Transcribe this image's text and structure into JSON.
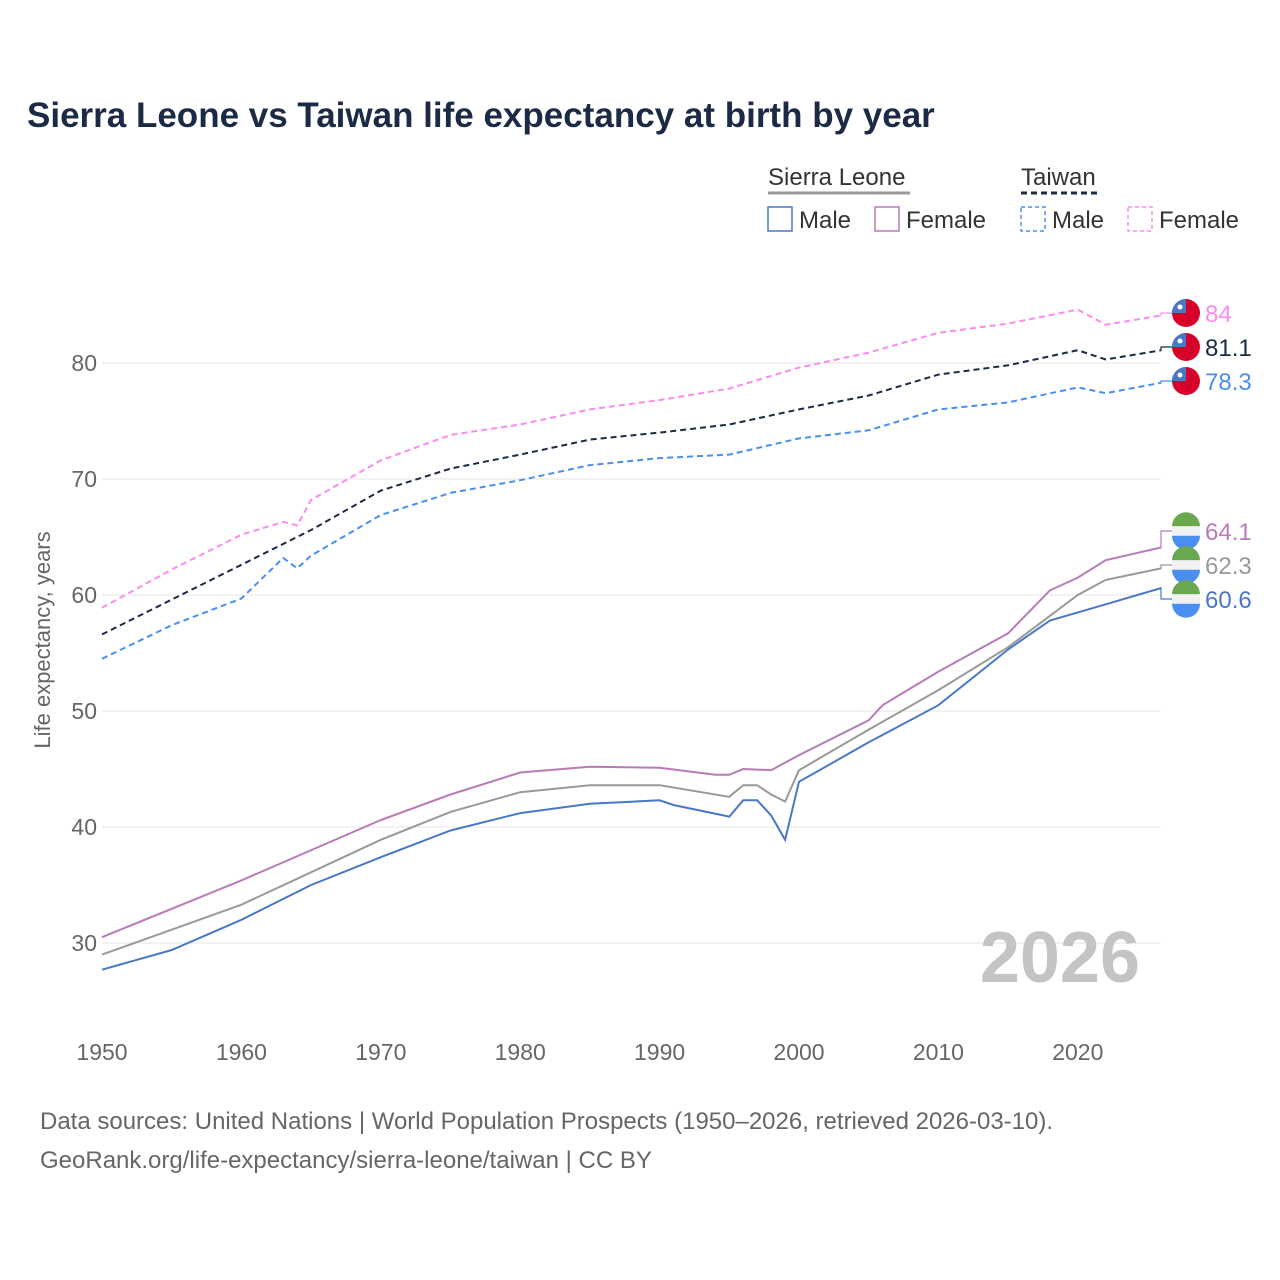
{
  "title": "Sierra Leone vs Taiwan life expectancy at birth by year",
  "sources": [
    "Data sources: United Nations | World Population Prospects (1950–2026, retrieved 2026-03-10).",
    "GeoRank.org/life-expectancy/sierra-leone/taiwan | CC BY"
  ],
  "year_label": "2026",
  "chart_data": {
    "type": "line",
    "title": "Sierra Leone vs Taiwan life expectancy at birth by year",
    "xlabel": "",
    "ylabel": "Life expectancy, years",
    "xlim": [
      1950,
      2026
    ],
    "ylim": [
      25,
      87
    ],
    "xticks": [
      1950,
      1960,
      1970,
      1980,
      1990,
      2000,
      2010,
      2020
    ],
    "yticks": [
      30,
      40,
      50,
      60,
      70,
      80
    ],
    "grid": true,
    "legend": {
      "placement": "top-right",
      "groups": [
        {
          "name": "Sierra Leone",
          "items": [
            "Male",
            "Female"
          ]
        },
        {
          "name": "Taiwan",
          "items": [
            "Male",
            "Female"
          ]
        }
      ]
    },
    "series": [
      {
        "name": "Taiwan Female",
        "country": "Taiwan",
        "color": "#f98cf0",
        "dashed": true,
        "end_label": "84",
        "points": [
          [
            1950,
            58.9
          ],
          [
            1955,
            62.2
          ],
          [
            1960,
            65.2
          ],
          [
            1963,
            66.3
          ],
          [
            1964,
            66.0
          ],
          [
            1965,
            68.2
          ],
          [
            1970,
            71.6
          ],
          [
            1975,
            73.8
          ],
          [
            1980,
            74.7
          ],
          [
            1985,
            76.0
          ],
          [
            1990,
            76.8
          ],
          [
            1995,
            77.8
          ],
          [
            2000,
            79.6
          ],
          [
            2005,
            80.9
          ],
          [
            2010,
            82.6
          ],
          [
            2015,
            83.4
          ],
          [
            2020,
            84.6
          ],
          [
            2022,
            83.3
          ],
          [
            2026,
            84.1
          ]
        ]
      },
      {
        "name": "Taiwan",
        "country": "Taiwan",
        "color": "#1b2a45",
        "dashed": true,
        "end_label": "81.1",
        "points": [
          [
            1950,
            56.6
          ],
          [
            1955,
            59.6
          ],
          [
            1960,
            62.6
          ],
          [
            1965,
            65.6
          ],
          [
            1970,
            69.0
          ],
          [
            1975,
            70.9
          ],
          [
            1980,
            72.1
          ],
          [
            1985,
            73.4
          ],
          [
            1990,
            74.0
          ],
          [
            1995,
            74.7
          ],
          [
            2000,
            76.0
          ],
          [
            2005,
            77.2
          ],
          [
            2010,
            79.0
          ],
          [
            2015,
            79.8
          ],
          [
            2020,
            81.1
          ],
          [
            2022,
            80.3
          ],
          [
            2026,
            81.1
          ]
        ]
      },
      {
        "name": "Taiwan Male",
        "country": "Taiwan",
        "color": "#4a8ff0",
        "dashed": true,
        "end_label": "78.3",
        "points": [
          [
            1950,
            54.5
          ],
          [
            1955,
            57.4
          ],
          [
            1960,
            59.7
          ],
          [
            1963,
            63.2
          ],
          [
            1964,
            62.3
          ],
          [
            1965,
            63.4
          ],
          [
            1970,
            66.9
          ],
          [
            1975,
            68.8
          ],
          [
            1980,
            69.9
          ],
          [
            1985,
            71.2
          ],
          [
            1990,
            71.8
          ],
          [
            1995,
            72.1
          ],
          [
            2000,
            73.5
          ],
          [
            2005,
            74.2
          ],
          [
            2010,
            76.0
          ],
          [
            2015,
            76.6
          ],
          [
            2020,
            77.9
          ],
          [
            2022,
            77.4
          ],
          [
            2026,
            78.3
          ]
        ]
      },
      {
        "name": "Sierra Leone Female",
        "country": "Sierra Leone",
        "color": "#b87bb8",
        "dashed": false,
        "end_label": "64.1",
        "points": [
          [
            1950,
            30.5
          ],
          [
            1960,
            35.4
          ],
          [
            1970,
            40.6
          ],
          [
            1975,
            42.8
          ],
          [
            1980,
            44.7
          ],
          [
            1985,
            45.2
          ],
          [
            1990,
            45.1
          ],
          [
            1994,
            44.5
          ],
          [
            1995,
            44.5
          ],
          [
            1996,
            45.0
          ],
          [
            1998,
            44.9
          ],
          [
            2000,
            46.2
          ],
          [
            2005,
            49.2
          ],
          [
            2006,
            50.5
          ],
          [
            2010,
            53.4
          ],
          [
            2015,
            56.7
          ],
          [
            2018,
            60.4
          ],
          [
            2020,
            61.5
          ],
          [
            2022,
            63.0
          ],
          [
            2026,
            64.1
          ]
        ]
      },
      {
        "name": "Sierra Leone",
        "country": "Sierra Leone",
        "color": "#999999",
        "dashed": false,
        "end_label": "62.3",
        "points": [
          [
            1950,
            29.0
          ],
          [
            1960,
            33.3
          ],
          [
            1970,
            38.9
          ],
          [
            1975,
            41.3
          ],
          [
            1980,
            43.0
          ],
          [
            1985,
            43.6
          ],
          [
            1990,
            43.6
          ],
          [
            1995,
            42.6
          ],
          [
            1996,
            43.6
          ],
          [
            1997,
            43.6
          ],
          [
            1998,
            42.8
          ],
          [
            1999,
            42.2
          ],
          [
            2000,
            44.9
          ],
          [
            2005,
            48.4
          ],
          [
            2010,
            51.8
          ],
          [
            2015,
            55.5
          ],
          [
            2020,
            60.0
          ],
          [
            2022,
            61.3
          ],
          [
            2026,
            62.3
          ]
        ]
      },
      {
        "name": "Sierra Leone Male",
        "country": "Sierra Leone",
        "color": "#4a78c8",
        "dashed": false,
        "end_label": "60.6",
        "points": [
          [
            1950,
            27.7
          ],
          [
            1955,
            29.4
          ],
          [
            1960,
            32.0
          ],
          [
            1965,
            35.0
          ],
          [
            1970,
            37.4
          ],
          [
            1975,
            39.7
          ],
          [
            1980,
            41.2
          ],
          [
            1985,
            42.0
          ],
          [
            1990,
            42.3
          ],
          [
            1991,
            41.9
          ],
          [
            1995,
            40.9
          ],
          [
            1996,
            42.3
          ],
          [
            1997,
            42.3
          ],
          [
            1998,
            41.0
          ],
          [
            1999,
            38.9
          ],
          [
            2000,
            43.9
          ],
          [
            2005,
            47.3
          ],
          [
            2010,
            50.5
          ],
          [
            2015,
            55.3
          ],
          [
            2018,
            57.8
          ],
          [
            2020,
            58.5
          ],
          [
            2022,
            59.2
          ],
          [
            2026,
            60.6
          ]
        ]
      }
    ]
  }
}
